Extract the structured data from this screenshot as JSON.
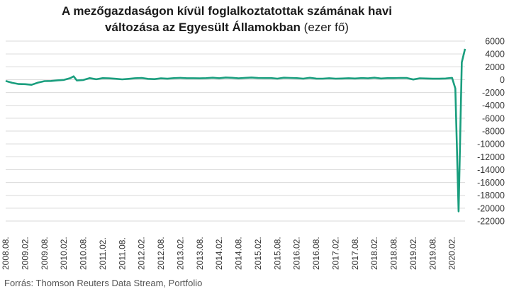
{
  "title_bold_1": "A mezőgazdaságon kívül foglalkoztatottak számának havi",
  "title_bold_2": "változása az Egyesült Államokban",
  "title_unit": "(ezer fő)",
  "source": "Forrás: Thomson Reuters Data Stream, Portfolio",
  "colors": {
    "line": "#1a9e7e",
    "grid": "#d9d9d9"
  },
  "chart_data": {
    "type": "line",
    "title": "A mezőgazdaságon kívül foglalkoztatottak számának havi változása az Egyesült Államokban (ezer fő)",
    "xlabel": "",
    "ylabel": "",
    "ylim": [
      -22000,
      6000
    ],
    "yticks": [
      6000,
      4000,
      2000,
      0,
      -2000,
      -4000,
      -6000,
      -8000,
      -10000,
      -12000,
      -14000,
      -16000,
      -18000,
      -20000,
      -22000
    ],
    "ytick_labels": [
      "6000",
      "4000",
      "2000",
      "0",
      "-2000",
      "-4000",
      "-6000",
      "-8000",
      "-10000",
      "-12000",
      "-14000",
      "-16000",
      "-18000",
      "-20000",
      "-22000"
    ],
    "xticks": [
      "2008.08.",
      "2009.02.",
      "2009.08.",
      "2010.02.",
      "2010.08.",
      "2011.02.",
      "2011.08.",
      "2012.02.",
      "2012.08.",
      "2013.02.",
      "2013.08.",
      "2014.02.",
      "2014.08.",
      "2015.02.",
      "2015.08.",
      "2016.02.",
      "2016.08.",
      "2017.02.",
      "2017.08.",
      "2018.02.",
      "2018.08.",
      "2019.02.",
      "2019.08.",
      "2020.02."
    ],
    "grid": true,
    "series": [
      {
        "x": [
          "2008.08.",
          "2008.10.",
          "2008.12.",
          "2009.02.",
          "2009.04.",
          "2009.06.",
          "2009.08.",
          "2009.10.",
          "2009.12.",
          "2010.02.",
          "2010.04.",
          "2010.05.",
          "2010.06.",
          "2010.08.",
          "2010.10.",
          "2010.12.",
          "2011.02.",
          "2011.04.",
          "2011.06.",
          "2011.08.",
          "2011.10.",
          "2011.12.",
          "2012.02.",
          "2012.04.",
          "2012.06.",
          "2012.08.",
          "2012.10.",
          "2012.12.",
          "2013.02.",
          "2013.04.",
          "2013.06.",
          "2013.08.",
          "2013.10.",
          "2013.12.",
          "2014.02.",
          "2014.04.",
          "2014.06.",
          "2014.08.",
          "2014.10.",
          "2014.12.",
          "2015.02.",
          "2015.04.",
          "2015.06.",
          "2015.08.",
          "2015.10.",
          "2015.12.",
          "2016.02.",
          "2016.04.",
          "2016.06.",
          "2016.08.",
          "2016.10.",
          "2016.12.",
          "2017.02.",
          "2017.04.",
          "2017.06.",
          "2017.08.",
          "2017.10.",
          "2017.12.",
          "2018.02.",
          "2018.04.",
          "2018.06.",
          "2018.08.",
          "2018.10.",
          "2018.12.",
          "2019.02.",
          "2019.04.",
          "2019.06.",
          "2019.08.",
          "2019.10.",
          "2019.12.",
          "2020.02.",
          "2020.03.",
          "2020.04.",
          "2020.05.",
          "2020.06."
        ],
        "values": [
          -200,
          -490,
          -680,
          -700,
          -800,
          -460,
          -230,
          -210,
          -110,
          -40,
          240,
          520,
          -130,
          -50,
          240,
          60,
          240,
          200,
          140,
          50,
          120,
          220,
          260,
          120,
          80,
          200,
          150,
          240,
          280,
          220,
          220,
          200,
          240,
          300,
          220,
          330,
          290,
          200,
          280,
          330,
          260,
          250,
          250,
          160,
          300,
          270,
          240,
          160,
          290,
          170,
          160,
          220,
          160,
          180,
          220,
          180,
          250,
          200,
          300,
          180,
          230,
          240,
          270,
          260,
          20,
          210,
          180,
          150,
          150,
          180,
          280,
          -1370,
          -20500,
          2700,
          4800
        ]
      }
    ]
  }
}
